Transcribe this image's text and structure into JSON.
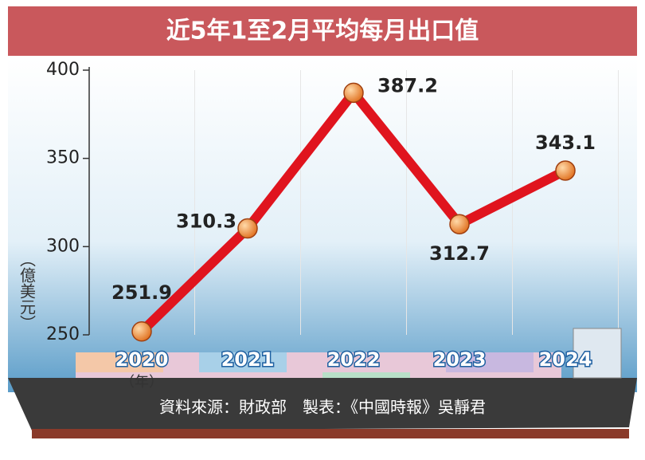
{
  "chart_data": {
    "type": "line",
    "title": "近5年1至2月平均每月出口值",
    "y_label": "（億美元）",
    "x_label": "（年）",
    "categories": [
      "2020",
      "2021",
      "2022",
      "2023",
      "2024"
    ],
    "series": [
      {
        "name": null,
        "color": "#e0141e",
        "values": [
          251.9,
          310.3,
          387.2,
          312.7,
          343.1
        ]
      }
    ],
    "ylim": [
      250,
      400
    ],
    "yticks": [
      250,
      300,
      350,
      400
    ],
    "source": "資料來源：財政部　製表：《中國時報》吳靜君"
  }
}
